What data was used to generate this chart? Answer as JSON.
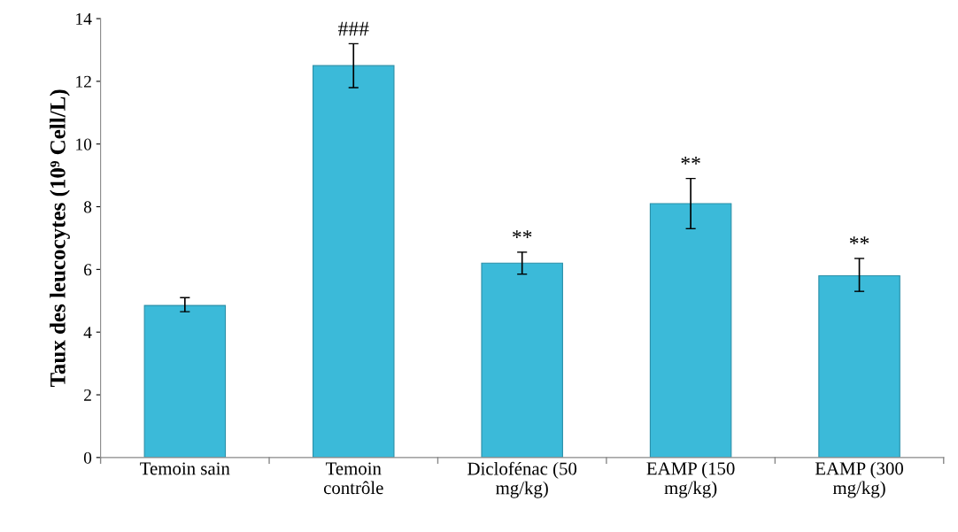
{
  "chart_data": {
    "type": "bar",
    "ylabel": "Taux des leucocytes (10⁹ Cell/L)",
    "categories": [
      "Temoin sain",
      "Temoin\ncontrôle",
      "Diclofénac (50\nmg/kg)",
      "EAMP (150\nmg/kg)",
      "EAMP (300\nmg/kg)"
    ],
    "values": [
      4.85,
      12.5,
      6.2,
      8.1,
      5.8
    ],
    "errors": [
      [
        4.65,
        5.1
      ],
      [
        11.8,
        13.2
      ],
      [
        5.85,
        6.55
      ],
      [
        7.3,
        8.9
      ],
      [
        5.3,
        6.35
      ]
    ],
    "color": "#3bbad9",
    "ylim": [
      0,
      14
    ],
    "yticks": [
      0,
      2,
      4,
      6,
      8,
      10,
      12,
      14
    ],
    "annotations": [
      {
        "text": "###",
        "x": "Temoin\ncontrôle",
        "y": 13.2
      },
      {
        "text": "**",
        "x": "Diclofénac (50\nmg/kg)",
        "y": 6.55
      },
      {
        "text": "**",
        "x": "EAMP (150\nmg/kg)",
        "y": 8.9
      },
      {
        "text": "**",
        "x": "EAMP (300\nmg/kg)",
        "y": 6.35
      }
    ],
    "grid": false,
    "legend": false
  }
}
